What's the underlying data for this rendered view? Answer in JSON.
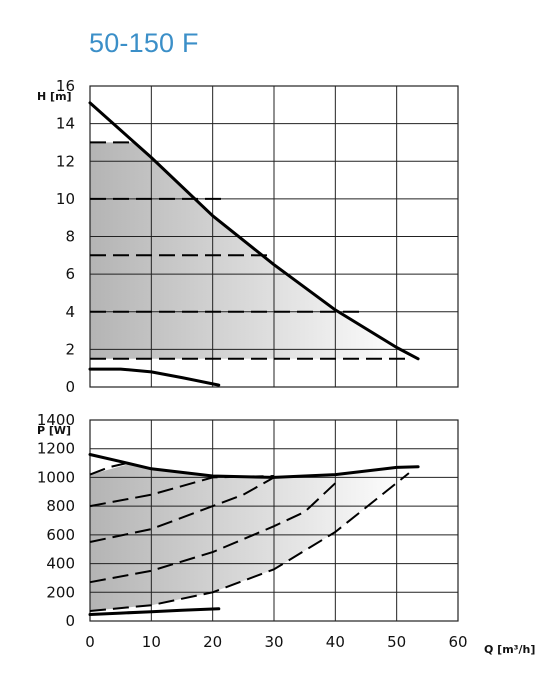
{
  "title": "50-150 F",
  "colors": {
    "title": "#3b8fc8",
    "curve": "#000000",
    "grid": "#222222",
    "shade_dark": "#b4b4b4",
    "shade_light": "#ffffff"
  },
  "chart_data": [
    {
      "type": "line",
      "name": "head",
      "ylabel": "H [m]",
      "xlim": [
        0,
        60
      ],
      "ylim": [
        0,
        16
      ],
      "yticks": [
        "0",
        "2",
        "4",
        "6",
        "8",
        "10",
        "12",
        "14",
        "16"
      ],
      "ytick_values": [
        0,
        2,
        4,
        6,
        8,
        10,
        12,
        14,
        16
      ],
      "grid": true,
      "series": [
        {
          "style": "max",
          "x": [
            0,
            10,
            20,
            30,
            40,
            50,
            53.5
          ],
          "y": [
            15.1,
            12.2,
            9.1,
            6.5,
            4.1,
            2.1,
            1.5
          ]
        },
        {
          "style": "dashed",
          "x": [
            0,
            7.5
          ],
          "y": [
            13,
            13
          ]
        },
        {
          "style": "dashed",
          "x": [
            0,
            22
          ],
          "y": [
            10,
            10
          ]
        },
        {
          "style": "dashed",
          "x": [
            0,
            30
          ],
          "y": [
            7,
            7
          ]
        },
        {
          "style": "dashed",
          "x": [
            0,
            44
          ],
          "y": [
            4,
            4
          ]
        },
        {
          "style": "dashed",
          "x": [
            0,
            52
          ],
          "y": [
            1.5,
            1.5
          ]
        },
        {
          "style": "min",
          "x": [
            0,
            5,
            10,
            15,
            21
          ],
          "y": [
            0.95,
            0.95,
            0.8,
            0.5,
            0.1
          ]
        }
      ],
      "shaded_area": {
        "x": [
          0,
          7.5,
          10,
          20,
          30,
          40,
          50,
          52,
          0
        ],
        "y": [
          13,
          13,
          12.2,
          9.1,
          6.5,
          4.1,
          2.1,
          1.5,
          1.5
        ]
      }
    },
    {
      "type": "line",
      "name": "power",
      "ylabel": "P [W]",
      "xlabel": "Q [m³/h]",
      "xlim": [
        0,
        60
      ],
      "ylim": [
        0,
        1400
      ],
      "xticks": [
        "0",
        "10",
        "20",
        "30",
        "40",
        "50",
        "60"
      ],
      "xtick_values": [
        0,
        10,
        20,
        30,
        40,
        50,
        60
      ],
      "yticks": [
        "0",
        "200",
        "400",
        "600",
        "800",
        "1000",
        "1200",
        "1400"
      ],
      "ytick_values": [
        0,
        200,
        400,
        600,
        800,
        1000,
        1200,
        1400
      ],
      "grid": true,
      "series": [
        {
          "style": "max",
          "x": [
            0,
            5,
            10,
            20,
            30,
            40,
            50,
            53.5
          ],
          "y": [
            1160,
            1110,
            1060,
            1010,
            1000,
            1020,
            1070,
            1075
          ]
        },
        {
          "style": "dashed",
          "x": [
            0,
            3,
            7
          ],
          "y": [
            1020,
            1070,
            1110
          ]
        },
        {
          "style": "dashed",
          "x": [
            0,
            10,
            20,
            30
          ],
          "y": [
            800,
            880,
            1000,
            1010
          ]
        },
        {
          "style": "dashed",
          "x": [
            0,
            10,
            20,
            25,
            30
          ],
          "y": [
            550,
            640,
            800,
            880,
            1000
          ]
        },
        {
          "style": "dashed",
          "x": [
            0,
            10,
            20,
            30,
            35,
            40
          ],
          "y": [
            270,
            350,
            480,
            660,
            760,
            960
          ]
        },
        {
          "style": "dashed",
          "x": [
            0,
            10,
            20,
            30,
            40,
            52
          ],
          "y": [
            70,
            110,
            200,
            360,
            620,
            1030
          ]
        },
        {
          "style": "min",
          "x": [
            0,
            5,
            10,
            15,
            21
          ],
          "y": [
            45,
            55,
            65,
            75,
            85
          ]
        }
      ],
      "shaded_area": {
        "x": [
          0,
          7,
          10,
          20,
          30,
          40,
          50,
          52,
          40,
          30,
          20,
          10,
          0
        ],
        "y": [
          1020,
          1100,
          1060,
          1010,
          1000,
          1020,
          1070,
          1030,
          620,
          360,
          200,
          110,
          70
        ]
      }
    }
  ]
}
